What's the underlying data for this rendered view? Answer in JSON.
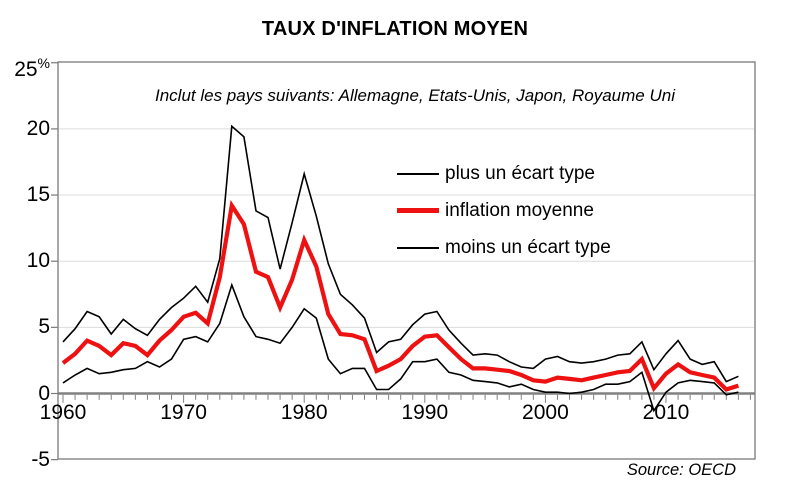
{
  "title": "TAUX D'INFLATION MOYEN",
  "subtitle": "Inclut les pays suivants: Allemagne, Etats-Unis, Japon, Royaume Uni",
  "source": "Source: OECD",
  "colors": {
    "mean_line": "#ee1111",
    "band_line": "#000000",
    "axis": "#808080",
    "grid": "#dcdcdc",
    "frame": "#7a7a7a"
  },
  "chart_data": {
    "type": "line",
    "title": "TAUX D'INFLATION MOYEN",
    "subtitle": "Inclut les pays suivants: Allemagne, Etats-Unis, Japon, Royaume Uni",
    "xlabel": "",
    "ylabel": "%",
    "ylim": [
      -5,
      25
    ],
    "grid": "horizontal",
    "legend_position": "inside-top-right",
    "x": [
      1960,
      1961,
      1962,
      1963,
      1964,
      1965,
      1966,
      1967,
      1968,
      1969,
      1970,
      1971,
      1972,
      1973,
      1974,
      1975,
      1976,
      1977,
      1978,
      1979,
      1980,
      1981,
      1982,
      1983,
      1984,
      1985,
      1986,
      1987,
      1988,
      1989,
      1990,
      1991,
      1992,
      1993,
      1994,
      1995,
      1996,
      1997,
      1998,
      1999,
      2000,
      2001,
      2002,
      2003,
      2004,
      2005,
      2006,
      2007,
      2008,
      2009,
      2010,
      2011,
      2012,
      2013,
      2014,
      2015,
      2016
    ],
    "series": [
      {
        "id": "plus-ecart-type",
        "name": "plus un écart type",
        "color": "#000000",
        "emphasis": false,
        "values": [
          3.9,
          4.9,
          6.2,
          5.8,
          4.5,
          5.6,
          4.9,
          4.4,
          5.6,
          6.5,
          7.2,
          8.1,
          6.9,
          10.2,
          20.2,
          19.4,
          13.8,
          13.3,
          9.4,
          12.9,
          16.6,
          13.4,
          9.8,
          7.5,
          6.7,
          5.7,
          3.1,
          3.9,
          4.1,
          5.2,
          6.0,
          6.2,
          4.8,
          3.8,
          2.9,
          3.0,
          2.9,
          2.4,
          2.0,
          1.9,
          2.6,
          2.8,
          2.4,
          2.3,
          2.4,
          2.6,
          2.9,
          3.0,
          3.9,
          1.8,
          3.0,
          4.0,
          2.6,
          2.2,
          2.4,
          0.9,
          1.3
        ]
      },
      {
        "id": "inflation-moyenne",
        "name": "inflation moyenne",
        "color": "#ee1111",
        "emphasis": true,
        "values": [
          2.3,
          3.0,
          4.0,
          3.6,
          2.9,
          3.8,
          3.6,
          2.9,
          4.0,
          4.8,
          5.8,
          6.1,
          5.3,
          8.8,
          14.2,
          12.8,
          9.2,
          8.8,
          6.5,
          8.6,
          11.6,
          9.6,
          6.0,
          4.5,
          4.4,
          4.1,
          1.7,
          2.1,
          2.6,
          3.6,
          4.3,
          4.4,
          3.5,
          2.6,
          1.9,
          1.9,
          1.8,
          1.7,
          1.4,
          1.0,
          0.9,
          1.2,
          1.1,
          1.0,
          1.2,
          1.4,
          1.6,
          1.7,
          2.6,
          0.4,
          1.5,
          2.2,
          1.6,
          1.4,
          1.2,
          0.3,
          0.6
        ]
      },
      {
        "id": "moins-ecart-type",
        "name": "moins un écart type",
        "color": "#000000",
        "emphasis": false,
        "values": [
          0.8,
          1.4,
          1.9,
          1.5,
          1.6,
          1.8,
          1.9,
          2.4,
          2.0,
          2.6,
          4.1,
          4.3,
          3.9,
          5.3,
          8.2,
          5.8,
          4.3,
          4.1,
          3.8,
          5.0,
          6.4,
          5.7,
          2.6,
          1.5,
          1.9,
          1.9,
          0.3,
          0.3,
          1.1,
          2.4,
          2.4,
          2.6,
          1.6,
          1.4,
          1.0,
          0.9,
          0.8,
          0.5,
          0.7,
          0.3,
          0.1,
          0.1,
          0.0,
          0.1,
          0.3,
          0.7,
          0.7,
          0.9,
          1.6,
          -1.3,
          0.1,
          0.8,
          1.0,
          0.9,
          0.8,
          -0.1,
          0.1
        ]
      }
    ],
    "yticks": [
      {
        "value": 25,
        "label": "25",
        "sup": "%"
      },
      {
        "value": 20,
        "label": "20"
      },
      {
        "value": 15,
        "label": "15"
      },
      {
        "value": 10,
        "label": "10"
      },
      {
        "value": 5,
        "label": "5"
      },
      {
        "value": 0,
        "label": "0"
      },
      {
        "value": -5,
        "label": "-5"
      }
    ],
    "xticks": [
      {
        "value": 1960,
        "label": "1960"
      },
      {
        "value": 1970,
        "label": "1970"
      },
      {
        "value": 1980,
        "label": "1980"
      },
      {
        "value": 1990,
        "label": "1990"
      },
      {
        "value": 2000,
        "label": "2000"
      },
      {
        "value": 2010,
        "label": "2010"
      }
    ]
  }
}
